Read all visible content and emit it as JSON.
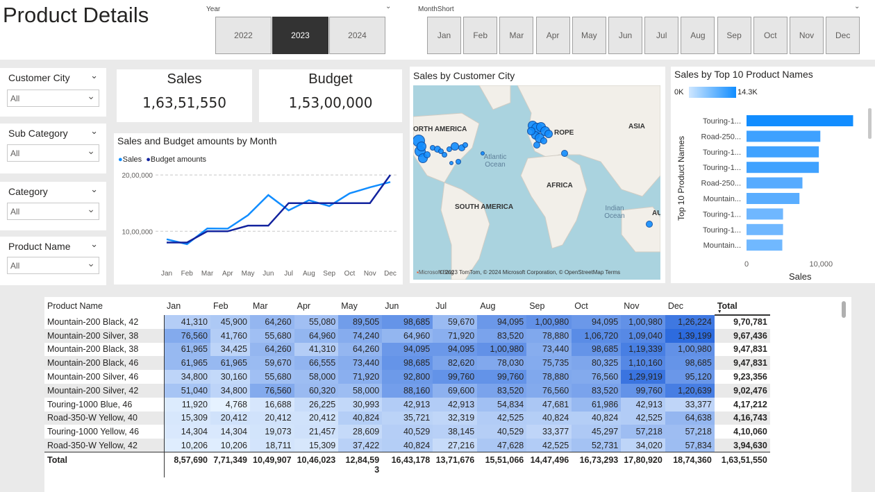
{
  "page_title": "Product Details",
  "year_slicer": {
    "title": "Year",
    "options": [
      "2022",
      "2023",
      "2024"
    ],
    "selected": "2023"
  },
  "month_slicer": {
    "title": "MonthShort",
    "options": [
      "Jan",
      "Feb",
      "Mar",
      "Apr",
      "May",
      "Jun",
      "Jul",
      "Aug",
      "Sep",
      "Oct",
      "Nov",
      "Dec"
    ]
  },
  "filters": [
    {
      "title": "Customer City",
      "value": "All"
    },
    {
      "title": "Sub Category",
      "value": "All"
    },
    {
      "title": "Category",
      "value": "All"
    },
    {
      "title": "Product Name",
      "value": "All"
    }
  ],
  "kpis": {
    "sales": {
      "label": "Sales",
      "value": "1,63,51,550"
    },
    "budget": {
      "label": "Budget",
      "value": "1,53,00,000"
    }
  },
  "line_chart": {
    "title": "Sales and Budget amounts by Month",
    "legend": [
      "Sales",
      "Budget amounts"
    ],
    "y_ticks": [
      "20,00,000",
      "10,00,000"
    ],
    "chart_data": {
      "type": "line",
      "categories": [
        "Jan",
        "Feb",
        "Mar",
        "Apr",
        "May",
        "Jun",
        "Jul",
        "Aug",
        "Sep",
        "Oct",
        "Nov",
        "Dec"
      ],
      "series": [
        {
          "name": "Sales",
          "color": "#118dff",
          "values": [
            857690,
            771349,
            1049907,
            1046023,
            1284593,
            1643178,
            1371676,
            1551066,
            1447496,
            1673293,
            1780920,
            1874360
          ]
        },
        {
          "name": "Budget amounts",
          "color": "#12239e",
          "values": [
            800000,
            800000,
            1000000,
            1000000,
            1100000,
            1100000,
            1500000,
            1500000,
            1500000,
            1500000,
            1500000,
            2000000
          ]
        }
      ],
      "ylim": [
        400000,
        2100000
      ]
    }
  },
  "map": {
    "title": "Sales by Customer City",
    "labels": {
      "north_america": "ORTH AMERICA",
      "europe": "ROPE",
      "asia": "ASIA",
      "africa": "AFRICA",
      "south_america": "SOUTH AMERICA",
      "australia": "AU"
    },
    "oceans": {
      "atlantic": "Atlantic Ocean",
      "indian": "Indian Ocean"
    },
    "attribution": "© 2023 TomTom, © 2024 Microsoft Corporation, © OpenStreetMap  Terms",
    "brand": "Microsoft Bing"
  },
  "bar_chart": {
    "title": "Sales by Top 10 Product Names",
    "gradient_min": "0K",
    "gradient_max": "14.3K",
    "ylabel": "Top 10 Product Names",
    "xlabel": "Sales",
    "x_ticks": [
      "0",
      "10,000"
    ],
    "chart_data": {
      "type": "bar",
      "categories": [
        "Touring-1...",
        "Road-250...",
        "Touring-1...",
        "Touring-1...",
        "Road-250...",
        "Mountain...",
        "Touring-1...",
        "Touring-1...",
        "Mountain..."
      ],
      "values": [
        14300,
        9900,
        9700,
        9700,
        7500,
        7100,
        4900,
        4900,
        4800
      ],
      "xlim": [
        0,
        15000
      ]
    }
  },
  "table": {
    "headers": [
      "Product Name",
      "Jan",
      "Feb",
      "Mar",
      "Apr",
      "May",
      "Jun",
      "Jul",
      "Aug",
      "Sep",
      "Oct",
      "Nov",
      "Dec",
      "Total"
    ],
    "rows": [
      {
        "name": "Mountain-200 Black, 42",
        "values": [
          "41,310",
          "45,900",
          "64,260",
          "55,080",
          "89,505",
          "98,685",
          "59,670",
          "94,095",
          "1,00,980",
          "94,095",
          "1,00,980",
          "1,26,224"
        ],
        "total": "9,70,781"
      },
      {
        "name": "Mountain-200 Silver, 38",
        "values": [
          "76,560",
          "41,760",
          "55,680",
          "64,960",
          "74,240",
          "64,960",
          "71,920",
          "83,520",
          "78,880",
          "1,06,720",
          "1,09,040",
          "1,39,199"
        ],
        "total": "9,67,436"
      },
      {
        "name": "Mountain-200 Black, 38",
        "values": [
          "61,965",
          "34,425",
          "64,260",
          "41,310",
          "64,260",
          "94,095",
          "94,095",
          "1,00,980",
          "73,440",
          "98,685",
          "1,19,339",
          "1,00,980"
        ],
        "total": "9,47,831"
      },
      {
        "name": "Mountain-200 Black, 46",
        "values": [
          "61,965",
          "61,965",
          "59,670",
          "66,555",
          "73,440",
          "98,685",
          "82,620",
          "78,030",
          "75,735",
          "80,325",
          "1,10,160",
          "98,685"
        ],
        "total": "9,47,831"
      },
      {
        "name": "Mountain-200 Silver, 46",
        "values": [
          "34,800",
          "30,160",
          "55,680",
          "58,000",
          "71,920",
          "92,800",
          "99,760",
          "99,760",
          "78,880",
          "76,560",
          "1,29,919",
          "95,120"
        ],
        "total": "9,23,356"
      },
      {
        "name": "Mountain-200 Silver, 42",
        "values": [
          "51,040",
          "34,800",
          "76,560",
          "60,320",
          "58,000",
          "88,160",
          "69,600",
          "83,520",
          "76,560",
          "83,520",
          "99,760",
          "1,20,639"
        ],
        "total": "9,02,476"
      },
      {
        "name": "Touring-1000 Blue, 46",
        "values": [
          "11,920",
          "4,768",
          "16,688",
          "26,225",
          "30,993",
          "42,913",
          "42,913",
          "54,834",
          "47,681",
          "61,986",
          "42,913",
          "33,377"
        ],
        "total": "4,17,212"
      },
      {
        "name": "Road-350-W Yellow, 40",
        "values": [
          "15,309",
          "20,412",
          "20,412",
          "20,412",
          "40,824",
          "35,721",
          "32,319",
          "42,525",
          "40,824",
          "40,824",
          "42,525",
          "64,638"
        ],
        "total": "4,16,743"
      },
      {
        "name": "Touring-1000 Yellow, 46",
        "values": [
          "14,304",
          "14,304",
          "19,073",
          "21,457",
          "28,609",
          "40,529",
          "38,145",
          "40,529",
          "33,377",
          "45,297",
          "57,218",
          "57,218"
        ],
        "total": "4,10,060"
      },
      {
        "name": "Road-350-W Yellow, 42",
        "values": [
          "10,206",
          "10,206",
          "18,711",
          "15,309",
          "37,422",
          "40,824",
          "27,216",
          "47,628",
          "42,525",
          "52,731",
          "34,020",
          "57,834"
        ],
        "total": "3,94,630"
      }
    ],
    "numeric_values": [
      [
        41310,
        45900,
        64260,
        55080,
        89505,
        98685,
        59670,
        94095,
        100980,
        94095,
        100980,
        126224
      ],
      [
        76560,
        41760,
        55680,
        64960,
        74240,
        64960,
        71920,
        83520,
        78880,
        106720,
        109040,
        139199
      ],
      [
        61965,
        34425,
        64260,
        41310,
        64260,
        94095,
        94095,
        100980,
        73440,
        98685,
        119339,
        100980
      ],
      [
        61965,
        61965,
        59670,
        66555,
        73440,
        98685,
        82620,
        78030,
        75735,
        80325,
        110160,
        98685
      ],
      [
        34800,
        30160,
        55680,
        58000,
        71920,
        92800,
        99760,
        99760,
        78880,
        76560,
        129919,
        95120
      ],
      [
        51040,
        34800,
        76560,
        60320,
        58000,
        88160,
        69600,
        83520,
        76560,
        83520,
        99760,
        120639
      ],
      [
        11920,
        4768,
        16688,
        26225,
        30993,
        42913,
        42913,
        54834,
        47681,
        61986,
        42913,
        33377
      ],
      [
        15309,
        20412,
        20412,
        20412,
        40824,
        35721,
        32319,
        42525,
        40824,
        40824,
        42525,
        64638
      ],
      [
        14304,
        14304,
        19073,
        21457,
        28609,
        40529,
        38145,
        40529,
        33377,
        45297,
        57218,
        57218
      ],
      [
        10206,
        10206,
        18711,
        15309,
        37422,
        40824,
        27216,
        47628,
        42525,
        52731,
        34020,
        57834
      ]
    ],
    "total_row": {
      "label": "Total",
      "values": [
        "8,57,690",
        "7,71,349",
        "10,49,907",
        "10,46,023",
        "12,84,59\n3",
        "16,43,178",
        "13,71,676",
        "15,51,066",
        "14,47,496",
        "16,73,293",
        "17,80,920",
        "18,74,360"
      ],
      "total": "1,63,51,550"
    }
  },
  "colors": {
    "sales": "#118dff",
    "budget": "#12239e",
    "heat_max": "#2d6bde",
    "heat_min": "#e6f2ff"
  }
}
